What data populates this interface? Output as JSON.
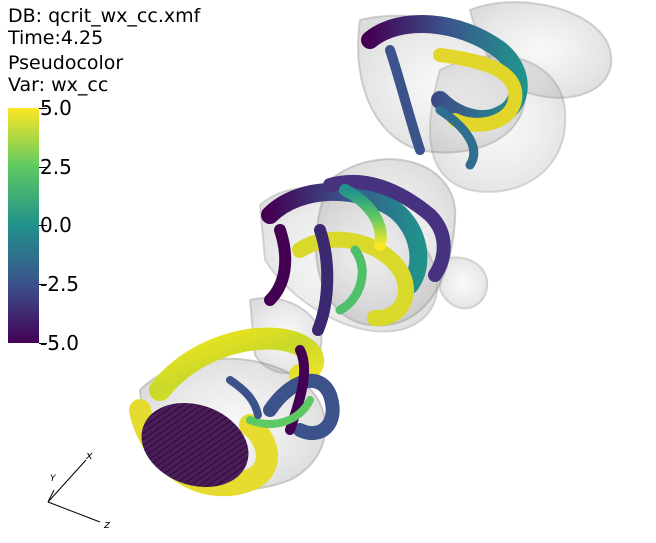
{
  "info": {
    "db": "DB: qcrit_wx_cc.xmf",
    "time": "Time:4.25",
    "plot": "Pseudocolor",
    "var": "Var: wx_cc"
  },
  "legend": {
    "ticks": [
      "5.0",
      "2.5",
      "0.0",
      "-2.5",
      "-5.0"
    ],
    "colormap": [
      "#fde725",
      "#5ec962",
      "#21918c",
      "#3b528b",
      "#440154"
    ]
  },
  "triad": {
    "x": "x",
    "y": "Y",
    "z": "z"
  }
}
